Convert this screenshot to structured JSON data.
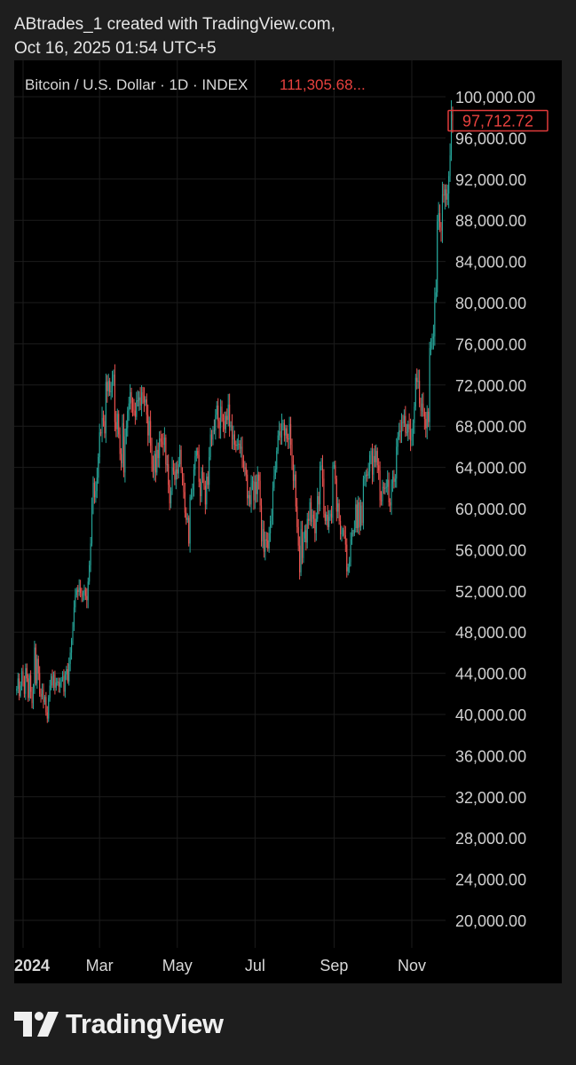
{
  "header": {
    "line1": "ABtrades_1 created with TradingView.com,",
    "line2": "Oct 16, 2025 01:54 UTC+5"
  },
  "chart_legend": {
    "symbol": "Bitcoin / U.S. Dollar · 1D · INDEX",
    "value": "111,305.68..."
  },
  "footer": {
    "brand": "TradingView",
    "logo_icon": "tradingview-logo-icon"
  },
  "colors": {
    "up": "#26a69a",
    "down": "#ef5350",
    "neutral": "#8a8a8a",
    "background": "#000000",
    "page": "#1e1e1e",
    "grid": "#1c1c1c",
    "price_badge": "#e03a3a"
  },
  "chart_data": {
    "type": "candlestick",
    "title": "Bitcoin / U.S. Dollar · 1D · INDEX",
    "ylim": [
      17000,
      101000
    ],
    "y_scale": "linear",
    "grid": true,
    "yticks": [
      "100,000.00",
      "96,000.00",
      "92,000.00",
      "88,000.00",
      "84,000.00",
      "80,000.00",
      "76,000.00",
      "72,000.00",
      "68,000.00",
      "64,000.00",
      "60,000.00",
      "56,000.00",
      "52,000.00",
      "48,000.00",
      "44,000.00",
      "40,000.00",
      "36,000.00",
      "32,000.00",
      "28,000.00",
      "24,000.00",
      "20,000.00"
    ],
    "ytick_values": [
      100000,
      96000,
      92000,
      88000,
      84000,
      80000,
      76000,
      72000,
      68000,
      64000,
      60000,
      56000,
      52000,
      48000,
      44000,
      40000,
      36000,
      32000,
      28000,
      24000,
      20000
    ],
    "xticks": [
      {
        "label": "2024",
        "date": "2024-01-01",
        "bold": true
      },
      {
        "label": "Mar",
        "date": "2024-03-01"
      },
      {
        "label": "May",
        "date": "2024-05-01"
      },
      {
        "label": "Jul",
        "date": "2024-07-01"
      },
      {
        "label": "Sep",
        "date": "2024-09-01"
      },
      {
        "label": "Nov",
        "date": "2024-11-01"
      }
    ],
    "last_price": {
      "label": "97,712.72",
      "value": 97712.72
    },
    "series": [
      {
        "start": "2023-12-27",
        "close": [
          42500,
          43500,
          41800,
          42800,
          44200,
          43200,
          42000,
          44500,
          43500,
          41600,
          43800,
          42200,
          41100,
          42600,
          46500,
          43000,
          45400,
          44000,
          42000,
          41700,
          42400,
          41200,
          41700,
          40200,
          39600,
          41600,
          42800,
          43700,
          42800,
          43900,
          42600,
          43100,
          43200,
          42700,
          43100,
          43400,
          43700,
          42200,
          43900,
          44400,
          43200,
          44900,
          46000,
          47200,
          48500,
          50400,
          51600,
          52100,
          51900,
          52300,
          51800,
          51500,
          51600,
          52100,
          51500,
          51100,
          52900,
          54500,
          56600,
          60400,
          62500,
          61100,
          61700,
          63000,
          65000,
          67400,
          67300,
          68800,
          68500,
          67300,
          72300,
          71400,
          72400,
          71300,
          71400,
          72800,
          73000,
          68400,
          67700,
          69200,
          67200,
          65300,
          64400,
          68300,
          63500,
          67000,
          67800,
          69500,
          70200,
          71300,
          70300,
          69600,
          69500,
          68900,
          70500,
          70500,
          70800,
          70000,
          71300,
          71000,
          70300,
          70600,
          69100,
          67100,
          68500,
          66100,
          64300,
          63700,
          65300,
          63500,
          65700,
          64900,
          66800,
          66500,
          66300,
          66200,
          66900,
          64300,
          64300,
          62300,
          60500,
          61700,
          64000,
          63600,
          62800,
          63800,
          63400,
          64300,
          65700,
          63700,
          62900,
          61600,
          59600,
          58900,
          59100,
          56600,
          61100,
          61300,
          61800,
          63800,
          65100,
          65600,
          65200,
          62600,
          61200,
          63600,
          62900,
          62200,
          60400,
          63100,
          62300,
          65000,
          67200,
          66700,
          67600,
          67600,
          69100,
          70000,
          68500,
          67800,
          69900,
          68800,
          68500,
          67700,
          69000,
          68600,
          70100,
          67900,
          68100,
          66700,
          67200,
          66200,
          66100,
          66200,
          66300,
          65800,
          66000,
          64700,
          64000,
          64000,
          63300,
          61000,
          61300,
          60400,
          62500,
          62700,
          60800,
          62600,
          61400,
          63300,
          62700,
          60300,
          56800,
          58000,
          55800,
          57000,
          56900,
          56100,
          57600,
          58800,
          59300,
          62000,
          63200,
          63800,
          65600,
          67100,
          67500,
          66900,
          68200,
          68300,
          67100,
          67800,
          66800,
          66700,
          68200,
          66200,
          64600,
          62700,
          63300,
          60200,
          58200,
          56400,
          53800,
          58000,
          55200,
          57100,
          57900,
          56700,
          59000,
          58800,
          60600,
          58700,
          59400,
          59000,
          57600,
          59000,
          61200,
          60400,
          64100,
          64200,
          62900,
          59500,
          58800,
          59400,
          58200,
          59200,
          59500,
          59100,
          64100,
          64200,
          62900,
          59700,
          60500,
          58800,
          57500,
          57800,
          57900,
          57400,
          56500,
          53900,
          54300,
          54800,
          57000,
          57600,
          57600,
          58100,
          60400,
          58100,
          60600,
          58200,
          60300,
          58600,
          62900,
          63100,
          63300,
          63200,
          63600,
          65200,
          65600,
          63300,
          65100,
          64500,
          65600,
          64200,
          63700,
          60800,
          60700,
          62100,
          62000,
          62000,
          62100,
          62800,
          60600,
          60300,
          62400,
          63100,
          62600,
          62900,
          66000,
          67000,
          67600,
          67400,
          68400,
          68300,
          69000,
          67400,
          67400,
          68200,
          67700,
          66600,
          67000,
          68300,
          69900,
          72700,
          72300,
          72400,
          70200,
          69500,
          70200,
          69400,
          68700,
          67800,
          69400,
          68400,
          75600,
          75900,
          76500,
          76700,
          80400,
          81000,
          87900,
          88700,
          87300,
          87000,
          90500,
          90400,
          91000,
          90000,
          90600,
          92300,
          94300,
          98300,
          97712.72
        ],
        "ohlc_note": "open = previous close; wick extents approximate"
      }
    ]
  }
}
